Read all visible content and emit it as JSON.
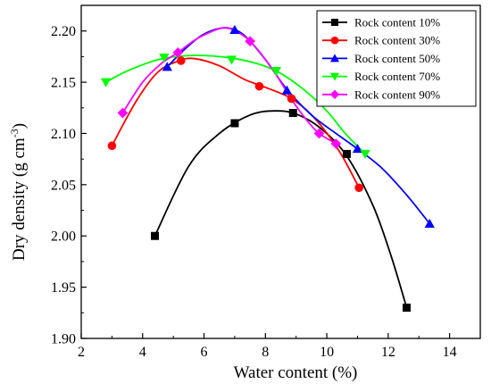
{
  "chart_data": {
    "type": "scatter",
    "title": "",
    "xlabel": "Water content (%)",
    "ylabel_main": "Dry density (g cm",
    "ylabel_sup": "-3",
    "ylabel_close": ")",
    "xlim": [
      2,
      15
    ],
    "ylim": [
      1.9,
      2.225
    ],
    "xticks": [
      2,
      4,
      6,
      8,
      10,
      12,
      14
    ],
    "xtick_labels": [
      "2",
      "4",
      "6",
      "8",
      "10",
      "12",
      "14"
    ],
    "yticks": [
      1.9,
      1.95,
      2.0,
      2.05,
      2.1,
      2.15,
      2.2
    ],
    "ytick_labels": [
      "1.90",
      "1.95",
      "2.00",
      "2.05",
      "2.10",
      "2.15",
      "2.20"
    ],
    "grid": false,
    "legend_position": "top-right",
    "series": [
      {
        "name": "Rock content 10%",
        "color": "#000000",
        "marker": "square",
        "points": [
          [
            4.4,
            2.0
          ],
          [
            7.0,
            2.11
          ],
          [
            8.9,
            2.12
          ],
          [
            10.65,
            2.08
          ],
          [
            12.6,
            1.93
          ]
        ],
        "curve": [
          [
            4.4,
            2.0
          ],
          [
            5.5,
            2.068
          ],
          [
            6.5,
            2.1
          ],
          [
            7.5,
            2.118
          ],
          [
            8.3,
            2.122
          ],
          [
            9.0,
            2.119
          ],
          [
            9.8,
            2.105
          ],
          [
            10.65,
            2.078
          ],
          [
            11.5,
            2.03
          ],
          [
            12.1,
            1.98
          ],
          [
            12.6,
            1.93
          ]
        ]
      },
      {
        "name": "Rock content 30%",
        "color": "#ff0000",
        "marker": "circle",
        "points": [
          [
            3.0,
            2.088
          ],
          [
            5.25,
            2.171
          ],
          [
            7.8,
            2.146
          ],
          [
            8.85,
            2.134
          ],
          [
            11.05,
            2.047
          ]
        ],
        "curve": [
          [
            3.0,
            2.088
          ],
          [
            3.8,
            2.132
          ],
          [
            4.5,
            2.16
          ],
          [
            5.2,
            2.171
          ],
          [
            5.7,
            2.173
          ],
          [
            6.5,
            2.166
          ],
          [
            7.3,
            2.153
          ],
          [
            8.0,
            2.145
          ],
          [
            8.85,
            2.134
          ],
          [
            9.6,
            2.115
          ],
          [
            10.4,
            2.083
          ],
          [
            11.05,
            2.047
          ]
        ]
      },
      {
        "name": "Rock content 50%",
        "color": "#0000ff",
        "marker": "triangle-up",
        "points": [
          [
            4.8,
            2.165
          ],
          [
            7.0,
            2.201
          ],
          [
            8.7,
            2.142
          ],
          [
            11.0,
            2.085
          ],
          [
            13.35,
            2.012
          ]
        ],
        "curve": [
          [
            4.8,
            2.165
          ],
          [
            5.4,
            2.183
          ],
          [
            6.0,
            2.197
          ],
          [
            6.7,
            2.203
          ],
          [
            7.3,
            2.196
          ],
          [
            8.0,
            2.172
          ],
          [
            8.7,
            2.143
          ],
          [
            9.5,
            2.118
          ],
          [
            10.3,
            2.1
          ],
          [
            11.0,
            2.085
          ],
          [
            11.8,
            2.066
          ],
          [
            12.6,
            2.04
          ],
          [
            13.35,
            2.012
          ]
        ]
      },
      {
        "name": "Rock content 70%",
        "color": "#00ff00",
        "marker": "triangle-down",
        "points": [
          [
            2.8,
            2.15
          ],
          [
            4.7,
            2.174
          ],
          [
            6.9,
            2.172
          ],
          [
            8.35,
            2.161
          ],
          [
            11.25,
            2.08
          ]
        ],
        "curve": [
          [
            2.8,
            2.15
          ],
          [
            3.5,
            2.161
          ],
          [
            4.5,
            2.172
          ],
          [
            5.5,
            2.176
          ],
          [
            6.5,
            2.175
          ],
          [
            7.5,
            2.17
          ],
          [
            8.35,
            2.161
          ],
          [
            9.2,
            2.144
          ],
          [
            10.0,
            2.122
          ],
          [
            10.6,
            2.1
          ],
          [
            11.25,
            2.08
          ]
        ]
      },
      {
        "name": "Rock content 90%",
        "color": "#ff00ff",
        "marker": "diamond",
        "points": [
          [
            3.35,
            2.12
          ],
          [
            5.15,
            2.179
          ],
          [
            7.5,
            2.19
          ],
          [
            9.75,
            2.1
          ],
          [
            10.3,
            2.09
          ]
        ],
        "curve": [
          [
            3.35,
            2.12
          ],
          [
            4.0,
            2.15
          ],
          [
            4.6,
            2.168
          ],
          [
            5.15,
            2.179
          ],
          [
            5.8,
            2.193
          ],
          [
            6.6,
            2.203
          ],
          [
            7.0,
            2.2
          ],
          [
            7.5,
            2.19
          ],
          [
            8.2,
            2.164
          ],
          [
            8.9,
            2.131
          ],
          [
            9.4,
            2.111
          ],
          [
            9.75,
            2.1
          ],
          [
            10.3,
            2.09
          ]
        ]
      }
    ]
  }
}
